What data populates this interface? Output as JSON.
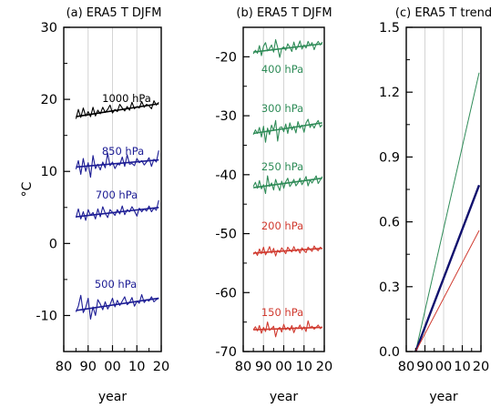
{
  "chart_data": [
    {
      "type": "line",
      "title": "(a) ERA5 T DJFM",
      "xlabel": "year",
      "ylabel": "°C",
      "xlim": [
        80,
        120
      ],
      "ylim": [
        -15,
        30
      ],
      "x_ticks": [
        80,
        90,
        100,
        110,
        120
      ],
      "x_tick_labels": [
        "80",
        "90",
        "00",
        "10",
        "20"
      ],
      "y_ticks": [
        -10,
        0,
        10,
        20,
        30
      ],
      "y_tick_labels": [
        "-10",
        "0",
        "10",
        "20",
        "30"
      ],
      "grid": "vertical",
      "x": [
        85,
        86,
        87,
        88,
        89,
        90,
        91,
        92,
        93,
        94,
        95,
        96,
        97,
        98,
        99,
        100,
        101,
        102,
        103,
        104,
        105,
        106,
        107,
        108,
        109,
        110,
        111,
        112,
        113,
        114,
        115,
        116,
        117,
        118,
        119
      ],
      "series": [
        {
          "name": "1000 hPa",
          "color": "#000000",
          "values": [
            17.3,
            18.6,
            17.5,
            18.8,
            17.7,
            18.3,
            17.6,
            18.9,
            17.7,
            18.5,
            18.0,
            18.9,
            18.2,
            18.6,
            19.2,
            18.1,
            18.6,
            18.3,
            19.3,
            18.8,
            18.4,
            19.0,
            18.5,
            19.6,
            18.7,
            19.0,
            18.8,
            19.7,
            18.9,
            19.3,
            19.1,
            18.7,
            19.8,
            19.2,
            19.6
          ],
          "trend": [
            17.6,
            19.4
          ]
        },
        {
          "name": "850 hPa",
          "color": "#1c1c94",
          "values": [
            10.3,
            11.5,
            9.6,
            11.8,
            10.0,
            11.2,
            9.2,
            12.2,
            10.4,
            11.0,
            10.2,
            11.3,
            10.5,
            12.5,
            10.8,
            11.3,
            10.4,
            11.0,
            10.9,
            12.0,
            10.7,
            12.3,
            11.0,
            11.1,
            10.8,
            11.8,
            11.2,
            11.5,
            10.9,
            11.3,
            11.9,
            10.7,
            11.7,
            11.3,
            12.9
          ],
          "trend": [
            10.6,
            11.6
          ]
        },
        {
          "name": "700 hPa",
          "color": "#1c1c94",
          "values": [
            3.6,
            4.8,
            3.4,
            4.4,
            3.2,
            4.7,
            3.9,
            4.3,
            3.4,
            4.8,
            3.7,
            5.1,
            4.2,
            3.6,
            4.7,
            4.3,
            3.9,
            4.7,
            4.1,
            5.2,
            4.0,
            4.7,
            4.4,
            5.1,
            4.5,
            3.8,
            4.9,
            4.4,
            4.8,
            4.5,
            5.2,
            4.4,
            4.9,
            4.6,
            6.0
          ],
          "trend": [
            3.7,
            5.0
          ]
        },
        {
          "name": "500 hPa",
          "color": "#1c1c94",
          "values": [
            -9.5,
            -8.7,
            -7.2,
            -9.6,
            -8.9,
            -7.6,
            -10.5,
            -8.8,
            -10.0,
            -7.8,
            -8.4,
            -9.2,
            -8.1,
            -9.1,
            -8.5,
            -7.6,
            -8.8,
            -7.9,
            -8.6,
            -8.0,
            -7.4,
            -8.5,
            -8.2,
            -7.5,
            -8.7,
            -8.0,
            -8.3,
            -7.1,
            -8.2,
            -7.8,
            -8.0,
            -7.4,
            -8.1,
            -7.8,
            -7.6
          ],
          "trend": [
            -9.3,
            -7.6
          ]
        }
      ]
    },
    {
      "type": "line",
      "title": "(b) ERA5 T DJFM",
      "xlabel": "year",
      "xlim": [
        80,
        120
      ],
      "ylim": [
        -70,
        -15
      ],
      "x_ticks": [
        80,
        90,
        100,
        110,
        120
      ],
      "x_tick_labels": [
        "80",
        "90",
        "00",
        "10",
        "20"
      ],
      "y_ticks": [
        -70,
        -60,
        -50,
        -40,
        -30,
        -20
      ],
      "y_tick_labels": [
        "-70",
        "-60",
        "-50",
        "-40",
        "-30",
        "-20"
      ],
      "grid": "vertical",
      "x": [
        85,
        86,
        87,
        88,
        89,
        90,
        91,
        92,
        93,
        94,
        95,
        96,
        97,
        98,
        99,
        100,
        101,
        102,
        103,
        104,
        105,
        106,
        107,
        108,
        109,
        110,
        111,
        112,
        113,
        114,
        115,
        116,
        117,
        118,
        119
      ],
      "series": [
        {
          "name": "400 hPa",
          "color": "#2e8b57",
          "values": [
            -19.5,
            -18.9,
            -19.4,
            -18.1,
            -19.8,
            -18.2,
            -17.6,
            -19.0,
            -18.6,
            -18.0,
            -19.2,
            -17.1,
            -18.4,
            -20.1,
            -18.6,
            -18.3,
            -18.9,
            -17.8,
            -18.4,
            -19.1,
            -17.5,
            -18.8,
            -18.2,
            -17.3,
            -18.7,
            -18.0,
            -18.5,
            -17.4,
            -18.1,
            -17.6,
            -18.8,
            -17.9,
            -17.4,
            -18.0,
            -17.5
          ],
          "trend": [
            -19.2,
            -17.8
          ]
        },
        {
          "name": "300 hPa",
          "color": "#2e8b57",
          "values": [
            -33.2,
            -32.4,
            -33.0,
            -32.0,
            -33.6,
            -31.8,
            -34.5,
            -32.1,
            -33.2,
            -31.6,
            -32.5,
            -30.8,
            -34.3,
            -32.0,
            -31.9,
            -32.7,
            -31.4,
            -33.0,
            -31.2,
            -32.4,
            -31.8,
            -32.9,
            -31.0,
            -32.1,
            -31.6,
            -32.8,
            -31.2,
            -30.6,
            -32.0,
            -31.4,
            -32.1,
            -31.3,
            -30.8,
            -31.9,
            -31.5
          ],
          "trend": [
            -33.0,
            -31.2
          ]
        },
        {
          "name": "250 hPa",
          "color": "#2e8b57",
          "values": [
            -42.0,
            -41.3,
            -42.3,
            -41.0,
            -42.4,
            -41.7,
            -43.2,
            -40.2,
            -42.0,
            -41.4,
            -42.6,
            -40.8,
            -41.8,
            -42.7,
            -41.1,
            -42.3,
            -41.2,
            -40.6,
            -42.0,
            -41.5,
            -40.8,
            -41.9,
            -41.4,
            -40.6,
            -41.7,
            -41.1,
            -40.3,
            -41.9,
            -40.9,
            -41.4,
            -40.8,
            -40.2,
            -41.5,
            -40.9,
            -40.3
          ],
          "trend": [
            -42.2,
            -40.6
          ]
        },
        {
          "name": "200 hPa",
          "color": "#d03a2f",
          "values": [
            -53.5,
            -53.1,
            -53.7,
            -52.6,
            -53.4,
            -52.3,
            -53.6,
            -53.0,
            -52.2,
            -53.3,
            -52.5,
            -53.8,
            -52.8,
            -53.2,
            -52.4,
            -52.9,
            -53.4,
            -52.3,
            -52.8,
            -53.1,
            -52.2,
            -53.0,
            -52.6,
            -53.3,
            -52.4,
            -52.9,
            -53.2,
            -52.3,
            -52.7,
            -53.0,
            -52.1,
            -52.6,
            -52.9,
            -52.3,
            -52.6
          ],
          "trend": [
            -53.3,
            -52.5
          ]
        },
        {
          "name": "150 hPa",
          "color": "#d03a2f",
          "values": [
            -66.3,
            -65.8,
            -66.5,
            -65.6,
            -66.9,
            -65.9,
            -66.6,
            -65.0,
            -66.4,
            -66.1,
            -65.7,
            -67.5,
            -66.2,
            -65.9,
            -66.7,
            -65.4,
            -66.3,
            -65.9,
            -66.4,
            -65.6,
            -66.8,
            -65.9,
            -66.1,
            -65.5,
            -66.3,
            -65.8,
            -66.6,
            -64.8,
            -66.0,
            -65.7,
            -66.2,
            -65.9,
            -65.5,
            -66.1,
            -65.8
          ],
          "trend": [
            -66.3,
            -65.9
          ]
        }
      ]
    },
    {
      "type": "line",
      "title": "(c) ERA5 T trend",
      "xlabel": "year",
      "xlim": [
        80,
        120
      ],
      "ylim": [
        0,
        1.5
      ],
      "x_ticks": [
        80,
        90,
        100,
        110,
        120
      ],
      "x_tick_labels": [
        "80",
        "90",
        "00",
        "10",
        "20"
      ],
      "y_ticks": [
        0,
        0.3,
        0.6,
        0.9,
        1.2,
        1.5
      ],
      "y_tick_labels": [
        "0.0",
        "0.3",
        "0.6",
        "0.9",
        "1.2",
        "1.5"
      ],
      "grid": "vertical",
      "x": [
        85,
        119
      ],
      "series": [
        {
          "color": "#2e8b57",
          "width": 1,
          "values": [
            0,
            1.29
          ]
        },
        {
          "color": "#10106e",
          "width": 2.4,
          "values": [
            0,
            0.77
          ]
        },
        {
          "color": "#d03a2f",
          "width": 1,
          "values": [
            0,
            0.56
          ]
        }
      ]
    }
  ]
}
